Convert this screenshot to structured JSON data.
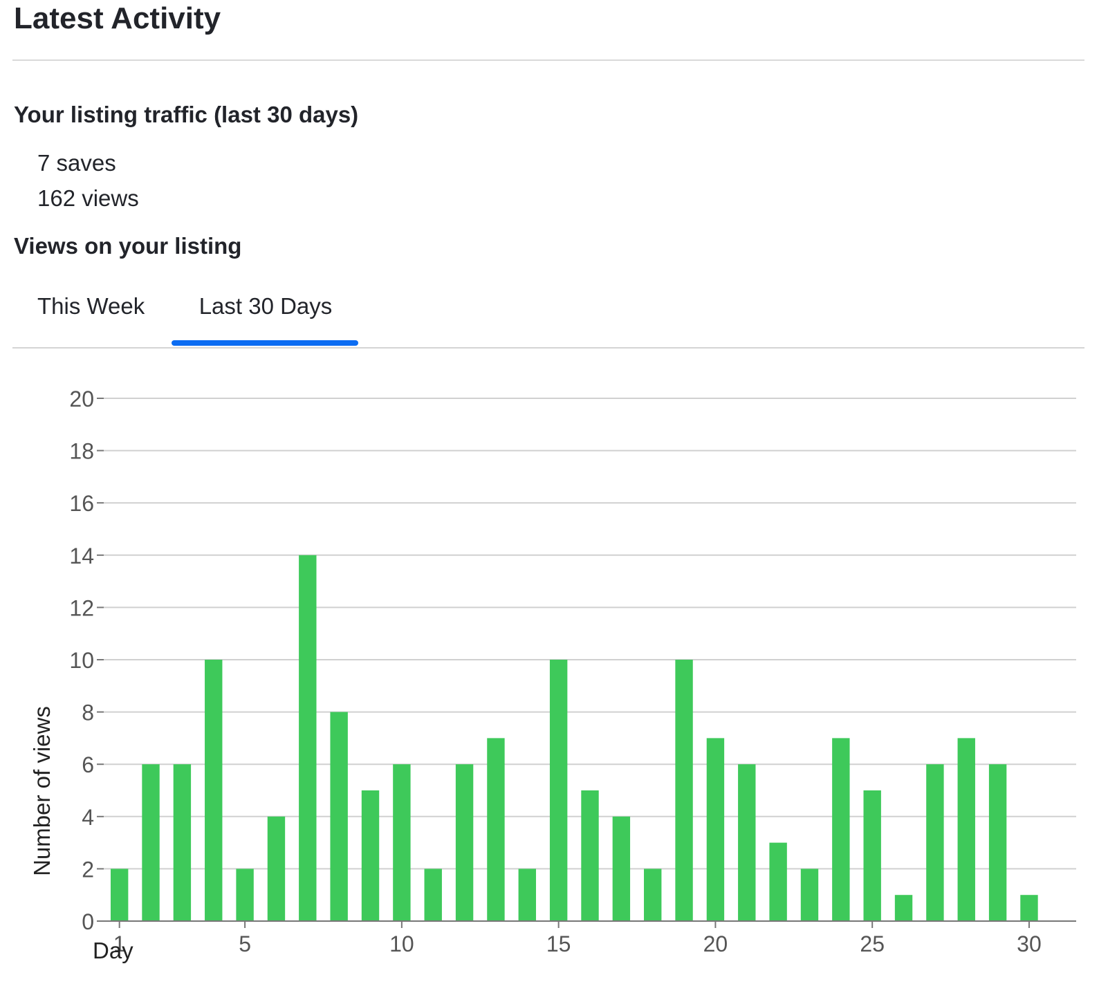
{
  "header": {
    "title": "Latest Activity"
  },
  "traffic": {
    "heading": "Your listing traffic (last 30 days)",
    "saves": "7 saves",
    "views": "162 views"
  },
  "views_section": {
    "heading": "Views on your listing",
    "tabs": [
      {
        "label": "This Week",
        "active": false
      },
      {
        "label": "Last 30 Days",
        "active": true
      }
    ]
  },
  "colors": {
    "bar": "#3ec95a",
    "accent": "#0b6cf2",
    "grid": "#d0d0d0",
    "axis": "#777777",
    "tick_text": "#555555"
  },
  "chart_data": {
    "type": "bar",
    "xlabel": "Day",
    "ylabel": "Number of views",
    "x": [
      1,
      2,
      3,
      4,
      5,
      6,
      7,
      8,
      9,
      10,
      11,
      12,
      13,
      14,
      15,
      16,
      17,
      18,
      19,
      20,
      21,
      22,
      23,
      24,
      25,
      26,
      27,
      28,
      29,
      30
    ],
    "values": [
      2,
      6,
      6,
      10,
      2,
      4,
      14,
      8,
      5,
      6,
      2,
      6,
      7,
      2,
      10,
      5,
      4,
      2,
      10,
      7,
      6,
      3,
      2,
      7,
      5,
      1,
      6,
      7,
      6,
      1
    ],
    "ylim": [
      0,
      20
    ],
    "xlim": [
      0.5,
      31.5
    ],
    "yticks": [
      0,
      2,
      4,
      6,
      8,
      10,
      12,
      14,
      16,
      18,
      20
    ],
    "xticks": [
      1,
      5,
      10,
      15,
      20,
      25,
      30
    ],
    "grid": true,
    "legend": "none"
  }
}
